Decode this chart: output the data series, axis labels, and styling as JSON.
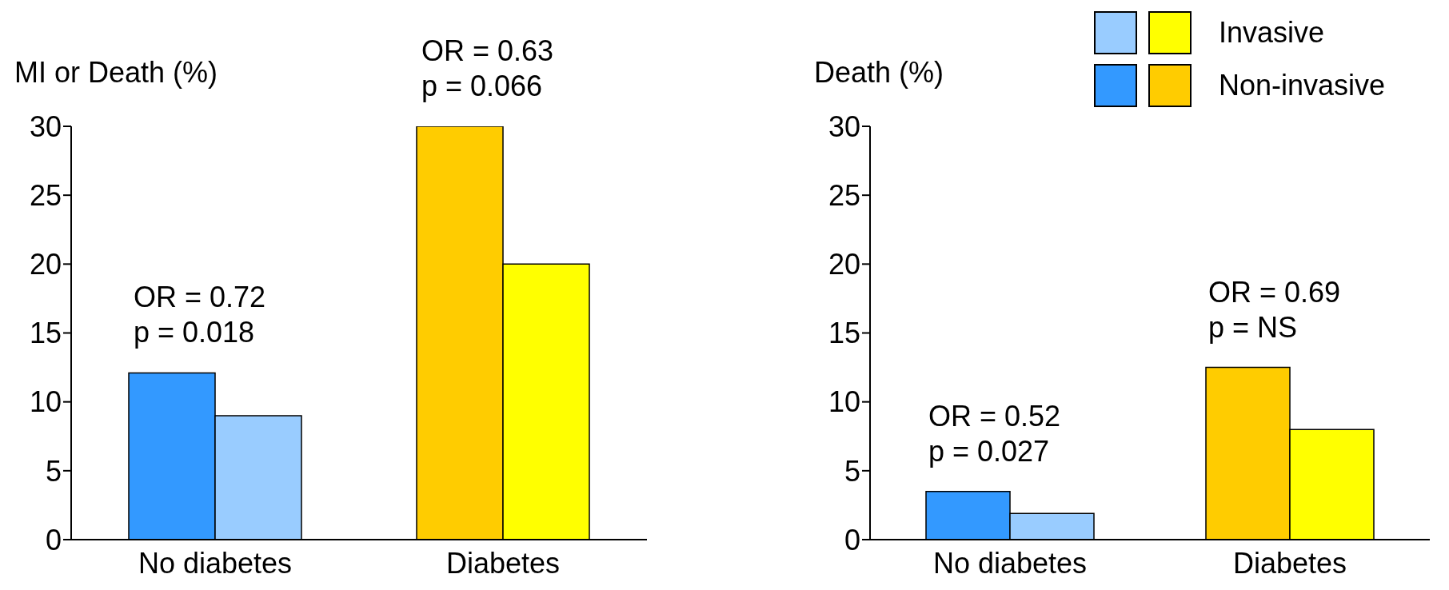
{
  "chart_data": [
    {
      "type": "bar",
      "ylabel": "MI or Death (%)",
      "categories": [
        "No diabetes",
        "Diabetes"
      ],
      "ylim": [
        0,
        30
      ],
      "yticks": [
        0,
        5,
        10,
        15,
        20,
        25,
        30
      ],
      "series": [
        {
          "colors": [
            "#3399ff",
            "#ffcc00"
          ],
          "values": [
            12.1,
            30
          ]
        },
        {
          "colors": [
            "#99ccff",
            "#ffff00"
          ],
          "values": [
            9,
            20
          ]
        }
      ],
      "annotations": [
        {
          "text": "OR = 0.72\np = 0.018",
          "x": "No diabetes",
          "y": 12.1
        },
        {
          "text": "OR = 0.63\np = 0.066",
          "x": "Diabetes",
          "y": 30
        }
      ]
    },
    {
      "type": "bar",
      "ylabel": "Death (%)",
      "categories": [
        "No diabetes",
        "Diabetes"
      ],
      "ylim": [
        0,
        30
      ],
      "yticks": [
        0,
        5,
        10,
        15,
        20,
        25,
        30
      ],
      "legend": "top right",
      "series": [
        {
          "name": "Non-invasive",
          "colors": [
            "#3399ff",
            "#ffcc00"
          ],
          "values": [
            3.5,
            12.5
          ]
        },
        {
          "name": "Invasive",
          "colors": [
            "#99ccff",
            "#ffff00"
          ],
          "values": [
            1.9,
            8
          ]
        }
      ],
      "annotations": [
        {
          "text": "OR = 0.52\np = 0.027",
          "x": "No diabetes",
          "y": 3.5
        },
        {
          "text": "OR = 0.69\np = NS",
          "x": "Diabetes",
          "y": 12.5
        }
      ]
    }
  ]
}
